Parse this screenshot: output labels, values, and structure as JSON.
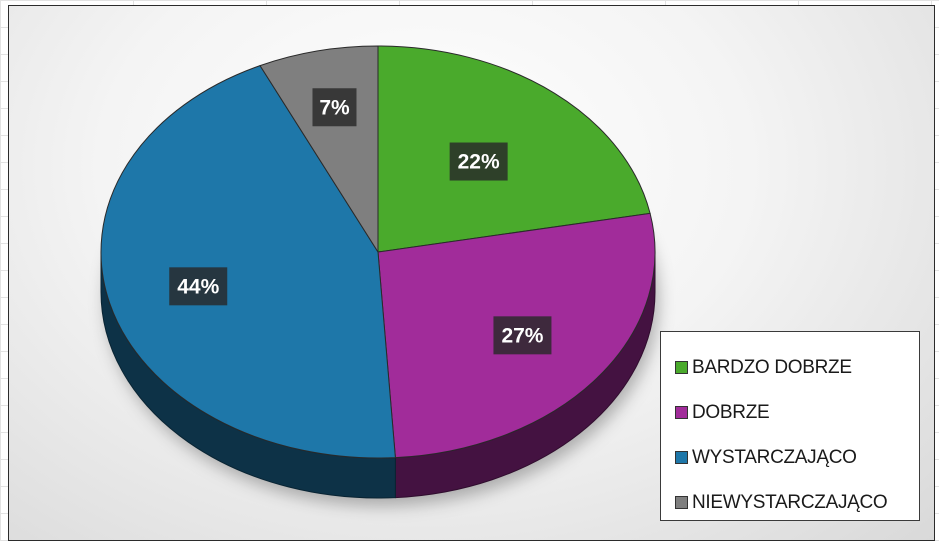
{
  "chart_data": {
    "type": "pie",
    "style": "3d",
    "categories": [
      "BARDZO DOBRZE",
      "DOBRZE",
      "WYSTARCZAJĄCO",
      "NIEWYSTARCZAJĄCO"
    ],
    "values": [
      22,
      27,
      44,
      7
    ],
    "data_labels": [
      "22%",
      "27%",
      "44%",
      "7%"
    ],
    "colors": [
      "#4aaa2c",
      "#a12c9a",
      "#1e77a9",
      "#7f7f7f"
    ],
    "legend_position": "bottom-right",
    "title": ""
  }
}
